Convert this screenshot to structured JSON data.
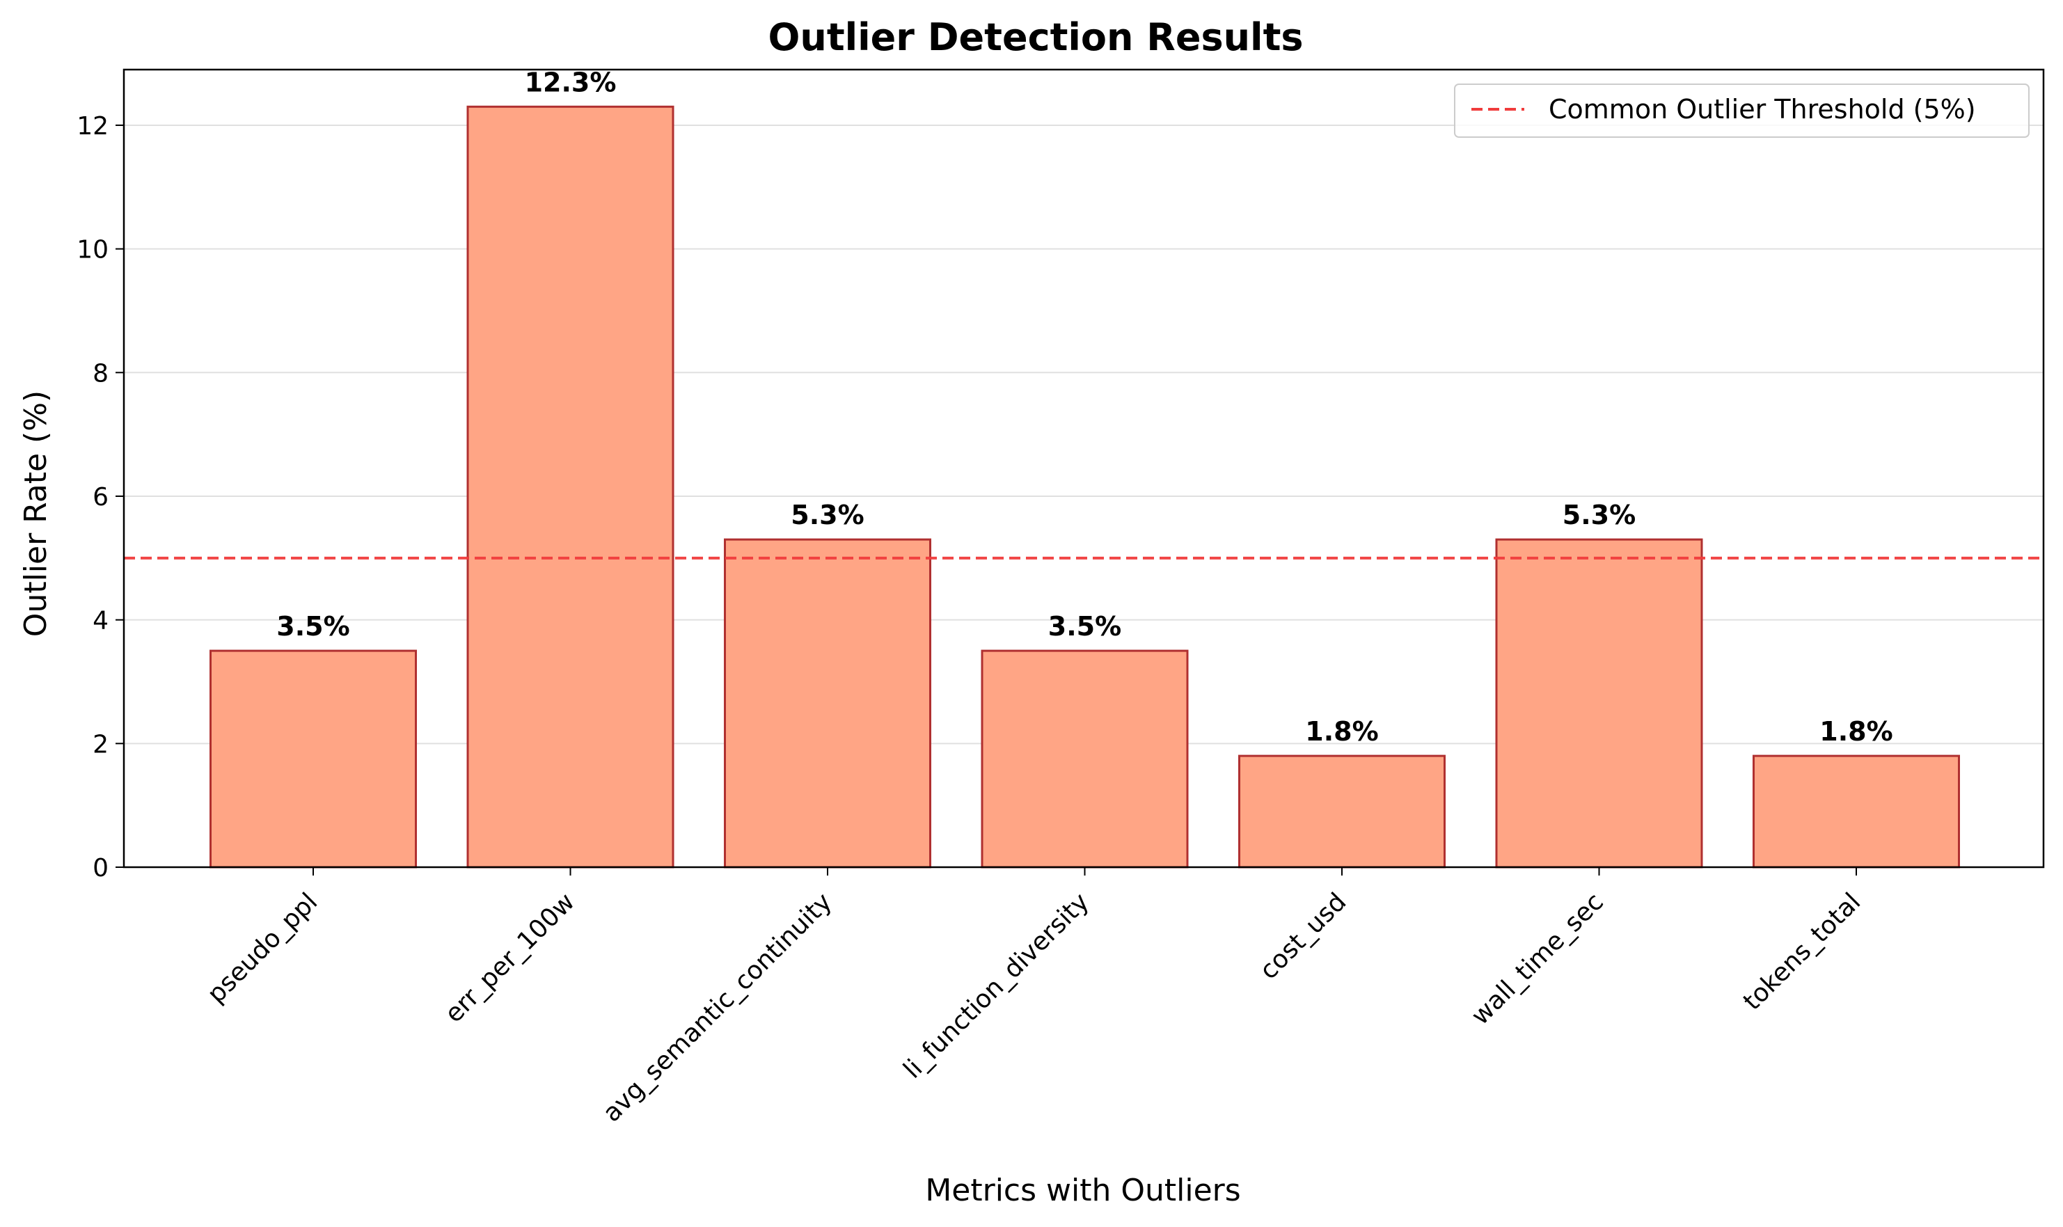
{
  "chart_data": {
    "type": "bar",
    "title": "Outlier Detection Results",
    "xlabel": "Metrics with Outliers",
    "ylabel": "Outlier Rate (%)",
    "categories": [
      "pseudo_ppl",
      "err_per_100w",
      "avg_semantic_continuity",
      "li_function_diversity",
      "cost_usd",
      "wall_time_sec",
      "tokens_total"
    ],
    "values": [
      3.5,
      12.3,
      5.3,
      3.5,
      1.8,
      5.3,
      1.8
    ],
    "value_labels": [
      "3.5%",
      "12.3%",
      "5.3%",
      "3.5%",
      "1.8%",
      "5.3%",
      "1.8%"
    ],
    "ylim": [
      0,
      12.9
    ],
    "yticks": [
      0,
      2,
      4,
      6,
      8,
      10,
      12
    ],
    "grid": "horizontal",
    "bar_color": "#ffa585",
    "bar_edge_color": "#b03030",
    "threshold": {
      "value": 5,
      "label": "Common Outlier Threshold (5%)",
      "color": "#f03c3c",
      "style": "dashed"
    },
    "legend_position": "top-right"
  }
}
